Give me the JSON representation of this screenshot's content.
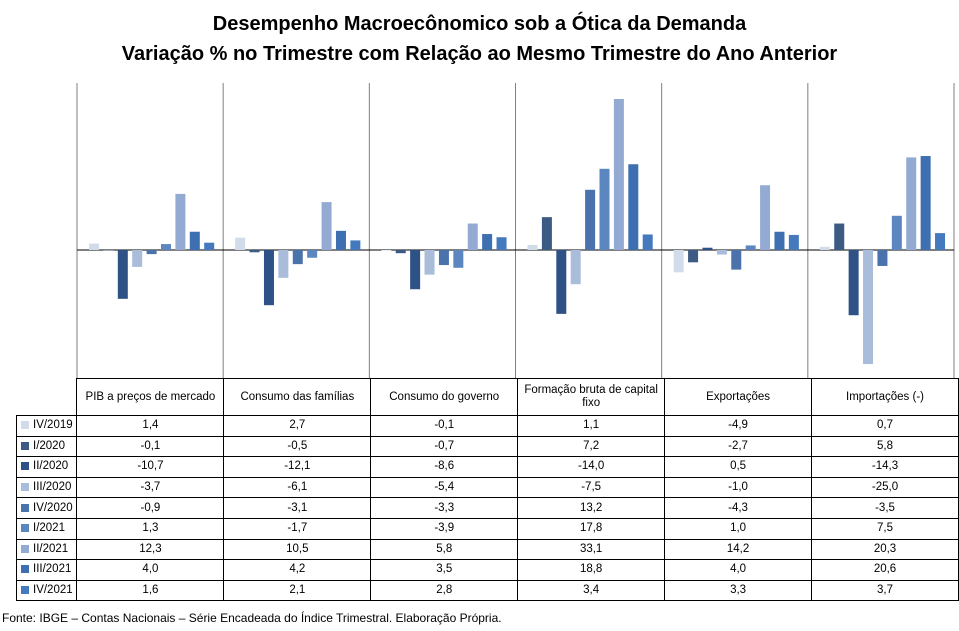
{
  "title": "Desempenho Macroecônomico sob a Ótica da Demanda",
  "subtitle": "Variação % no Trimestre com Relação ao Mesmo Trimestre do Ano Anterior",
  "source": "Fonte: IBGE – Contas Nacionais – Série Encadeada do Índice Trimestral. Elaboração Própria.",
  "chart_data": {
    "type": "bar",
    "title": "Desempenho Macroecônomico sob a Ótica da Demanda",
    "subtitle": "Variação % no Trimestre com Relação ao Mesmo Trimestre do Ano Anterior",
    "categories": [
      "PIB a preços de mercado",
      "Consumo das famílias",
      "Consumo do governo",
      "Formação bruta de capital fixo",
      "Exportações",
      "Importações (-)"
    ],
    "ylim": [
      -35,
      40
    ],
    "grid": false,
    "legend": "table-left",
    "series": [
      {
        "name": "IV/2019",
        "color": "#d2dbe9",
        "values": [
          1.4,
          2.7,
          -0.1,
          1.1,
          -4.9,
          0.7
        ]
      },
      {
        "name": "I/2020",
        "color": "#3b5a84",
        "values": [
          -0.1,
          -0.5,
          -0.7,
          7.2,
          -2.7,
          5.8
        ]
      },
      {
        "name": "II/2020",
        "color": "#2e5286",
        "values": [
          -10.7,
          -12.1,
          -8.6,
          -14.0,
          0.5,
          -14.3
        ]
      },
      {
        "name": "III/2020",
        "color": "#a9bcd9",
        "values": [
          -3.7,
          -6.1,
          -5.4,
          -7.5,
          -1.0,
          -25.0
        ]
      },
      {
        "name": "IV/2020",
        "color": "#4a73ac",
        "values": [
          -0.9,
          -3.1,
          -3.3,
          13.2,
          -4.3,
          -3.5
        ]
      },
      {
        "name": "I/2021",
        "color": "#5b86c0",
        "values": [
          1.3,
          -1.7,
          -3.9,
          17.8,
          1.0,
          7.5
        ]
      },
      {
        "name": "II/2021",
        "color": "#93abd3",
        "values": [
          12.3,
          10.5,
          5.8,
          33.1,
          14.2,
          20.3
        ]
      },
      {
        "name": "III/2021",
        "color": "#3e6fb1",
        "values": [
          4.0,
          4.2,
          3.5,
          18.8,
          4.0,
          20.6
        ]
      },
      {
        "name": "IV/2021",
        "color": "#4479bd",
        "values": [
          1.6,
          2.1,
          2.8,
          3.4,
          3.3,
          3.7
        ]
      }
    ],
    "table_values": [
      [
        "1,4",
        "2,7",
        "-0,1",
        "1,1",
        "-4,9",
        "0,7"
      ],
      [
        "-0,1",
        "-0,5",
        "-0,7",
        "7,2",
        "-2,7",
        "5,8"
      ],
      [
        "-10,7",
        "-12,1",
        "-8,6",
        "-14,0",
        "0,5",
        "-14,3"
      ],
      [
        "-3,7",
        "-6,1",
        "-5,4",
        "-7,5",
        "-1,0",
        "-25,0"
      ],
      [
        "-0,9",
        "-3,1",
        "-3,3",
        "13,2",
        "-4,3",
        "-3,5"
      ],
      [
        "1,3",
        "-1,7",
        "-3,9",
        "17,8",
        "1,0",
        "7,5"
      ],
      [
        "12,3",
        "10,5",
        "5,8",
        "33,1",
        "14,2",
        "20,3"
      ],
      [
        "4,0",
        "4,2",
        "3,5",
        "18,8",
        "4,0",
        "20,6"
      ],
      [
        "1,6",
        "2,1",
        "2,8",
        "3,4",
        "3,3",
        "3,7"
      ]
    ]
  }
}
